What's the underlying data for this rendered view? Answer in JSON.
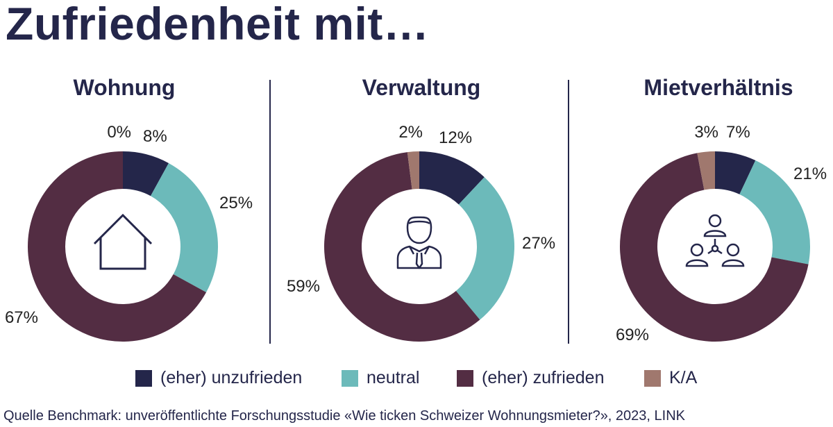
{
  "title": "Zufriedenheit mit…",
  "source": "Quelle Benchmark: unveröffentlichte Forschungsstudie «Wie ticken Schweizer Wohnungsmieter?», 2023, LINK",
  "legend": [
    {
      "label": "(eher) unzufrieden",
      "color": "#24264a"
    },
    {
      "label": "neutral",
      "color": "#6cbaba"
    },
    {
      "label": "(eher) zufrieden",
      "color": "#532d43"
    },
    {
      "label": "K/A",
      "color": "#a0786e"
    }
  ],
  "chart_data": [
    {
      "type": "pie",
      "title": "Wohnung",
      "icon": "house-icon",
      "categories": [
        "(eher) unzufrieden",
        "neutral",
        "(eher) zufrieden",
        "K/A"
      ],
      "values": [
        8,
        25,
        67,
        0
      ],
      "labels": [
        "8%",
        "25%",
        "67%",
        "0%"
      ]
    },
    {
      "type": "pie",
      "title": "Verwaltung",
      "icon": "person-icon",
      "categories": [
        "(eher) unzufrieden",
        "neutral",
        "(eher) zufrieden",
        "K/A"
      ],
      "values": [
        12,
        27,
        59,
        2
      ],
      "labels": [
        "12%",
        "27%",
        "59%",
        "2%"
      ]
    },
    {
      "type": "pie",
      "title": "Mietverhältnis",
      "icon": "people-network-icon",
      "categories": [
        "(eher) unzufrieden",
        "neutral",
        "(eher) zufrieden",
        "K/A"
      ],
      "values": [
        7,
        21,
        69,
        3
      ],
      "labels": [
        "7%",
        "21%",
        "69%",
        "3%"
      ]
    }
  ]
}
